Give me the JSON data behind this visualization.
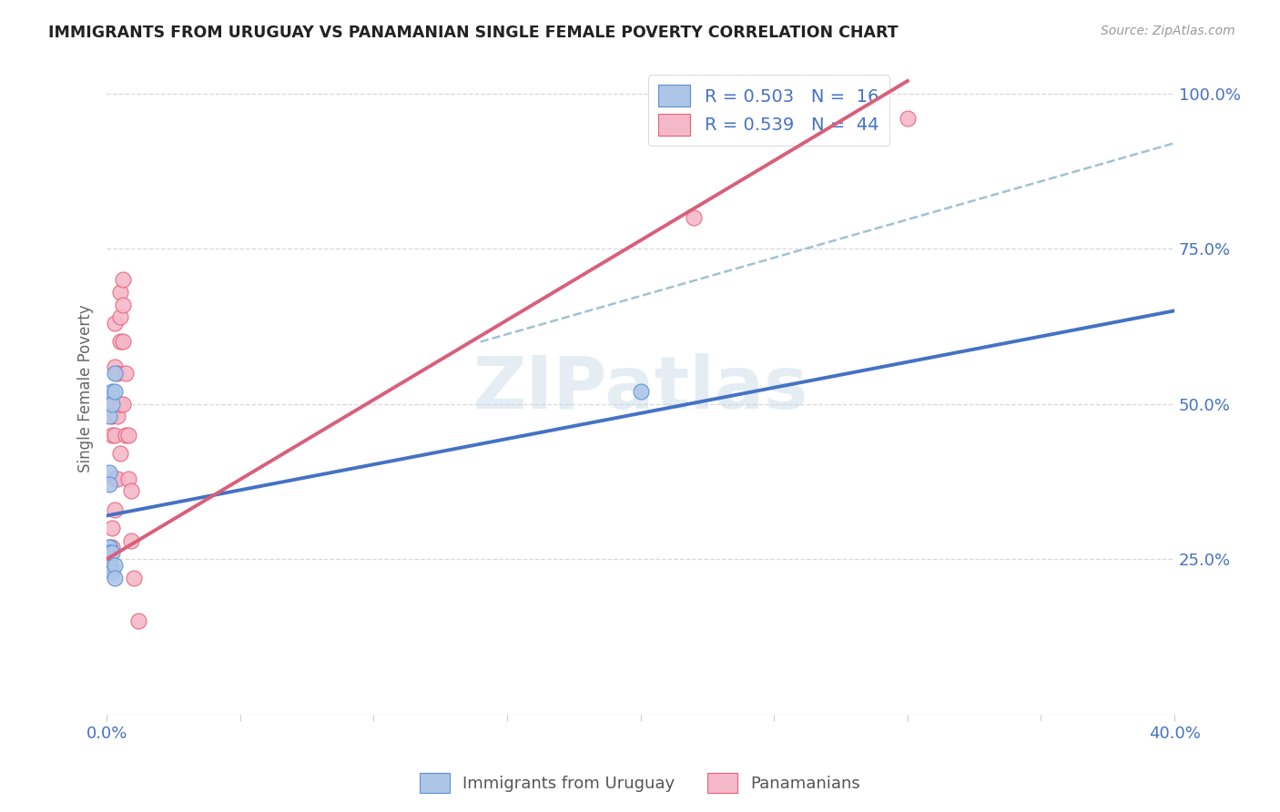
{
  "title": "IMMIGRANTS FROM URUGUAY VS PANAMANIAN SINGLE FEMALE POVERTY CORRELATION CHART",
  "source": "Source: ZipAtlas.com",
  "ylabel": "Single Female Poverty",
  "right_ytick_vals": [
    0.25,
    0.5,
    0.75,
    1.0
  ],
  "right_ytick_labels": [
    "25.0%",
    "50.0%",
    "75.0%",
    "100.0%"
  ],
  "legend_blue_r": "0.503",
  "legend_blue_n": "16",
  "legend_pink_r": "0.539",
  "legend_pink_n": "44",
  "watermark": "ZIPatlas",
  "legend_label_blue": "Immigrants from Uruguay",
  "legend_label_pink": "Panamanians",
  "blue_scatter_x": [
    0.001,
    0.002,
    0.002,
    0.003,
    0.003,
    0.001,
    0.001,
    0.001,
    0.001,
    0.001,
    0.001,
    0.002,
    0.002,
    0.003,
    0.003,
    0.2
  ],
  "blue_scatter_y": [
    0.48,
    0.52,
    0.5,
    0.55,
    0.52,
    0.39,
    0.37,
    0.27,
    0.27,
    0.26,
    0.24,
    0.26,
    0.23,
    0.24,
    0.22,
    0.52
  ],
  "pink_scatter_x": [
    0.001,
    0.001,
    0.001,
    0.001,
    0.001,
    0.001,
    0.001,
    0.001,
    0.001,
    0.001,
    0.001,
    0.001,
    0.002,
    0.002,
    0.002,
    0.002,
    0.002,
    0.003,
    0.003,
    0.003,
    0.003,
    0.003,
    0.004,
    0.004,
    0.004,
    0.005,
    0.005,
    0.005,
    0.005,
    0.005,
    0.006,
    0.006,
    0.006,
    0.006,
    0.007,
    0.007,
    0.008,
    0.008,
    0.009,
    0.009,
    0.01,
    0.012,
    0.22,
    0.3
  ],
  "pink_scatter_y": [
    0.25,
    0.25,
    0.25,
    0.25,
    0.25,
    0.25,
    0.24,
    0.24,
    0.24,
    0.24,
    0.24,
    0.24,
    0.5,
    0.48,
    0.45,
    0.3,
    0.27,
    0.63,
    0.56,
    0.45,
    0.38,
    0.33,
    0.55,
    0.48,
    0.38,
    0.68,
    0.64,
    0.6,
    0.5,
    0.42,
    0.7,
    0.66,
    0.6,
    0.5,
    0.55,
    0.45,
    0.45,
    0.38,
    0.36,
    0.28,
    0.22,
    0.15,
    0.8,
    0.96
  ],
  "blue_color": "#adc6e8",
  "pink_color": "#f5b8c8",
  "blue_edge_color": "#5b8fd4",
  "pink_edge_color": "#e8607a",
  "blue_line_color": "#4472c4",
  "pink_line_color": "#d95f7a",
  "dashed_line_color": "#90b8cc",
  "blue_line_x0": 0.0,
  "blue_line_y0": 0.32,
  "blue_line_x1": 0.4,
  "blue_line_y1": 0.65,
  "pink_line_x0": 0.0,
  "pink_line_y0": 0.25,
  "pink_line_x1": 0.3,
  "pink_line_y1": 1.02,
  "dashed_line_x0": 0.14,
  "dashed_line_y0": 0.6,
  "dashed_line_x1": 0.4,
  "dashed_line_y1": 0.92,
  "xlim": [
    0.0,
    0.4
  ],
  "ylim": [
    0.0,
    1.05
  ],
  "background_color": "#ffffff",
  "grid_color": "#d8d8d8"
}
